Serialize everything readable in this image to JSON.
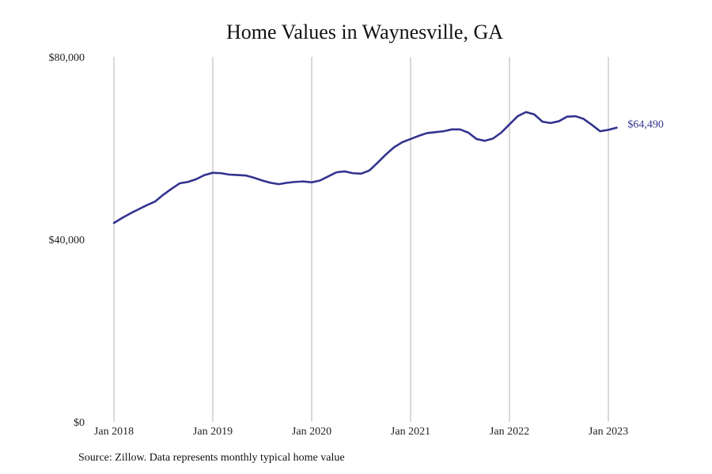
{
  "chart_data": {
    "type": "line",
    "title": "Home Values in Waynesville, GA",
    "source": "Source: Zillow. Data represents monthly typical home value",
    "ylim": [
      0,
      80000
    ],
    "xlim": [
      "2018-01",
      "2023-02"
    ],
    "y_ticks": [
      {
        "value": 0,
        "label": "$0"
      },
      {
        "value": 40000,
        "label": "$40,000"
      },
      {
        "value": 80000,
        "label": "$80,000"
      }
    ],
    "x_ticks": [
      {
        "date": "2018-01",
        "label": "Jan 2018"
      },
      {
        "date": "2019-01",
        "label": "Jan 2019"
      },
      {
        "date": "2020-01",
        "label": "Jan 2020"
      },
      {
        "date": "2021-01",
        "label": "Jan 2021"
      },
      {
        "date": "2022-01",
        "label": "Jan 2022"
      },
      {
        "date": "2023-01",
        "label": "Jan 2023"
      }
    ],
    "grid": {
      "vertical": true,
      "horizontal": false
    },
    "line_color": "#33338f",
    "grid_color": "#b3b3b3",
    "end_label": "$64,490",
    "series": [
      {
        "x": [
          "2018-01",
          "2018-02",
          "2018-03",
          "2018-04",
          "2018-05",
          "2018-06",
          "2018-07",
          "2018-08",
          "2018-09",
          "2018-10",
          "2018-11",
          "2018-12",
          "2019-01",
          "2019-02",
          "2019-03",
          "2019-04",
          "2019-05",
          "2019-06",
          "2019-07",
          "2019-08",
          "2019-09",
          "2019-10",
          "2019-11",
          "2019-12",
          "2020-01",
          "2020-02",
          "2020-03",
          "2020-04",
          "2020-05",
          "2020-06",
          "2020-07",
          "2020-08",
          "2020-09",
          "2020-10",
          "2020-11",
          "2020-12",
          "2021-01",
          "2021-02",
          "2021-03",
          "2021-04",
          "2021-05",
          "2021-06",
          "2021-07",
          "2021-08",
          "2021-09",
          "2021-10",
          "2021-11",
          "2021-12",
          "2022-01",
          "2022-02",
          "2022-03",
          "2022-04",
          "2022-05",
          "2022-06",
          "2022-07",
          "2022-08",
          "2022-09",
          "2022-10",
          "2022-11",
          "2022-12",
          "2023-01",
          "2023-02"
        ],
        "y": [
          43600,
          44700,
          45700,
          46600,
          47500,
          48300,
          49800,
          51100,
          52300,
          52600,
          53200,
          54100,
          54600,
          54500,
          54200,
          54100,
          54000,
          53500,
          52900,
          52400,
          52100,
          52400,
          52600,
          52700,
          52500,
          52900,
          53800,
          54700,
          54900,
          54500,
          54400,
          55100,
          56800,
          58600,
          60200,
          61300,
          62000,
          62700,
          63300,
          63500,
          63700,
          64100,
          64100,
          63400,
          62000,
          61600,
          62100,
          63400,
          65200,
          67000,
          67900,
          67400,
          65800,
          65500,
          65900,
          66900,
          67000,
          66400,
          65100,
          63700,
          64000,
          64490
        ]
      }
    ]
  }
}
